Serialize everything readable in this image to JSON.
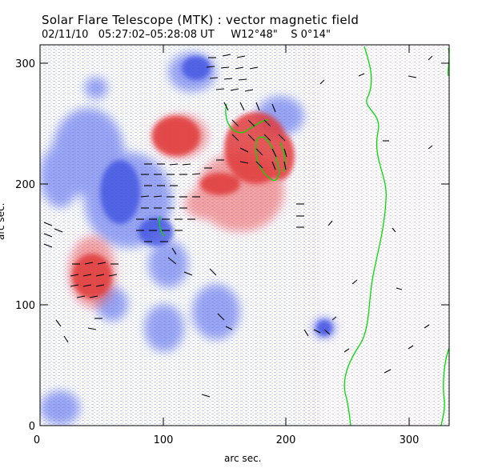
{
  "header": {
    "title": "Solar Flare Telescope (MTK) : vector magnetic field",
    "subtitle": "02/11/10   05:27:02–05:28:08 UT     W12°48\"    S 0°14\""
  },
  "axes": {
    "xlabel": "arc sec.",
    "ylabel": "arc sec.",
    "x_ticks": [
      "0",
      "100",
      "200",
      "300"
    ],
    "y_ticks": [
      "0",
      "100",
      "200",
      "300"
    ],
    "xlim": [
      0,
      337
    ],
    "ylim": [
      0,
      315
    ]
  },
  "colors": {
    "positive_polarity": "#e84a4a",
    "negative_polarity": "#4a5ee8",
    "neutral_line": "#00dd00",
    "vectors": "#000000"
  }
}
